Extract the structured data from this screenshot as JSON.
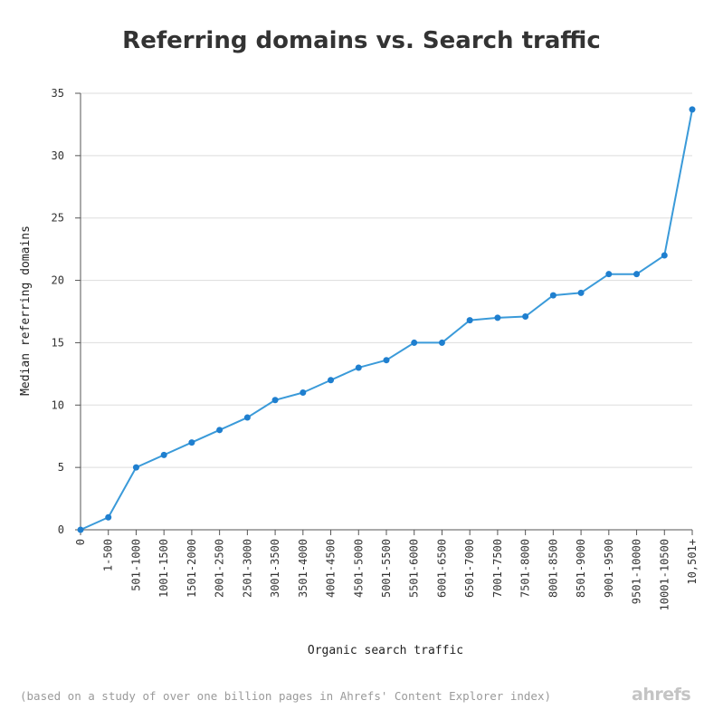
{
  "chart_data": {
    "type": "line",
    "title": "Referring domains vs. Search traffic",
    "xlabel": "Organic search traffic",
    "ylabel": "Median referring domains",
    "categories": [
      "0",
      "1-500",
      "501-1000",
      "1001-1500",
      "1501-2000",
      "2001-2500",
      "2501-3000",
      "3001-3500",
      "3501-4000",
      "4001-4500",
      "4501-5000",
      "5001-5500",
      "5501-6000",
      "6001-6500",
      "6501-7000",
      "7001-7500",
      "7501-8000",
      "8001-8500",
      "8501-9000",
      "9001-9500",
      "9501-10000",
      "10001-10500",
      "10,501+"
    ],
    "series": [
      {
        "values": [
          0,
          1,
          5,
          6,
          7,
          8,
          9,
          10.4,
          11,
          12,
          13,
          13.6,
          15,
          15,
          16.8,
          17,
          17.1,
          18.8,
          19,
          20.5,
          20.5,
          22,
          33.7
        ]
      }
    ],
    "yticks": [
      "0",
      "5",
      "10",
      "15",
      "20",
      "25",
      "30",
      "35"
    ],
    "ylim": [
      0,
      35
    ],
    "grid": true,
    "colors": {
      "line": "#3a9ad9",
      "point": "#1f7fcf",
      "grid": "#dddddd",
      "axis": "#555555"
    }
  },
  "footnote": "(based on a study of over one billion pages in Ahrefs' Content Explorer index)",
  "brand": "ahrefs"
}
